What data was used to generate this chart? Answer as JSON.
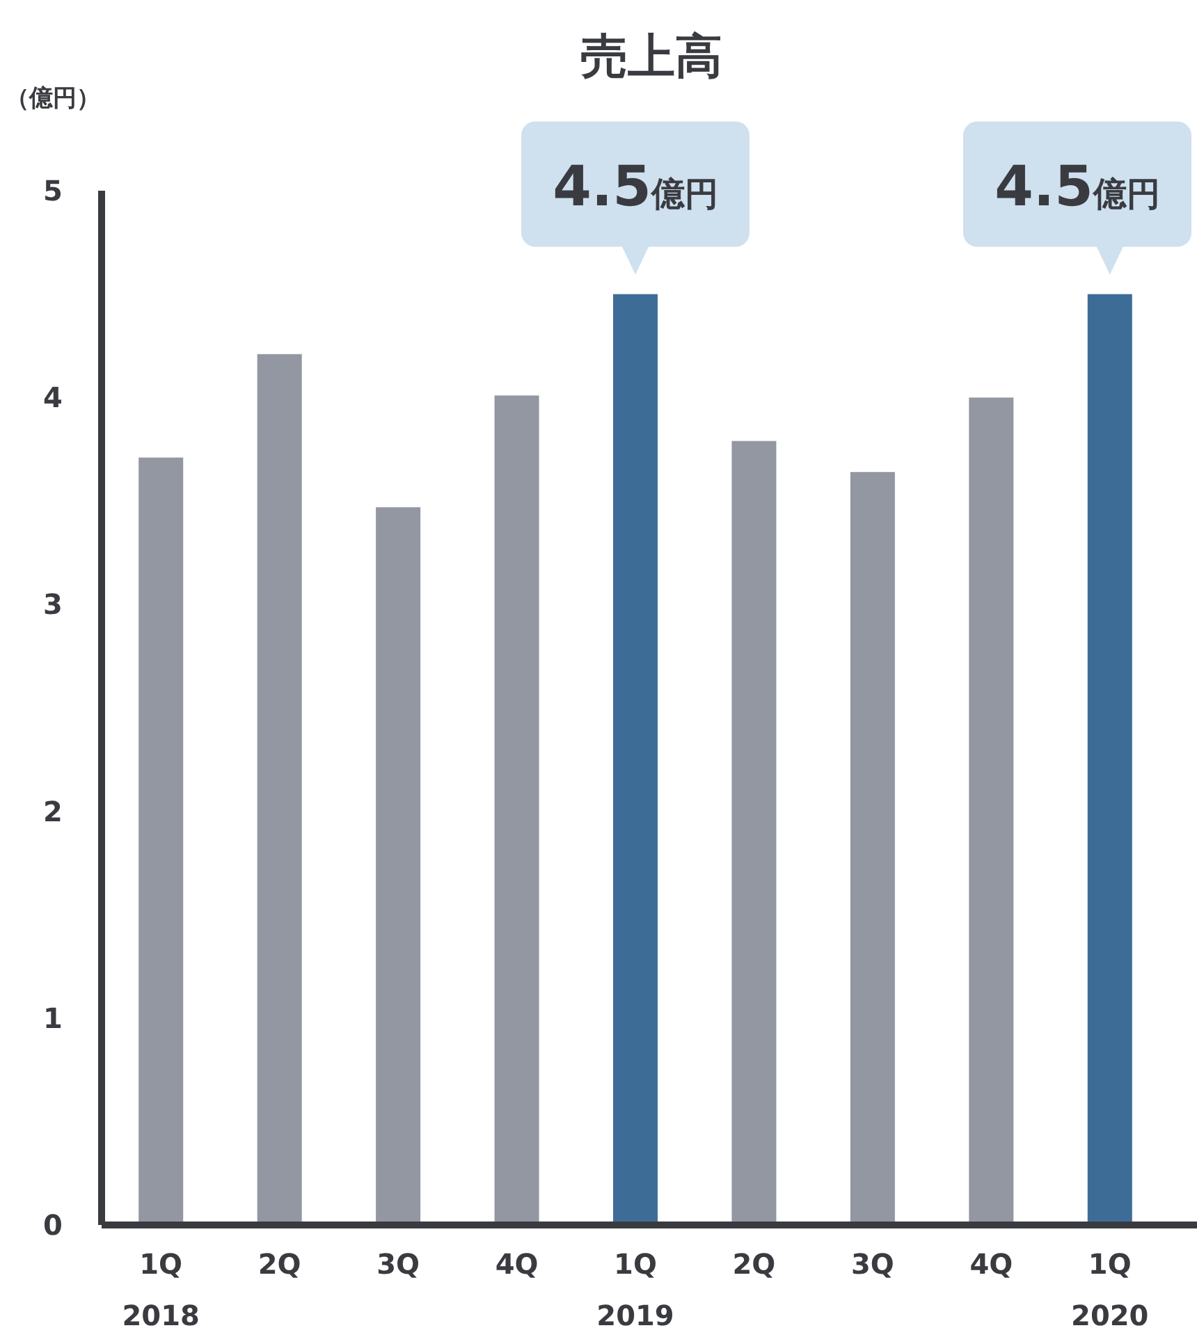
{
  "chart_data": {
    "type": "bar",
    "title": "売上高",
    "ylabel": "（億円）",
    "categories": [
      "1Q\n2018",
      "2Q",
      "3Q",
      "4Q",
      "1Q\n2019",
      "2Q",
      "3Q",
      "4Q",
      "1Q\n2020"
    ],
    "values": [
      3.71,
      4.21,
      3.47,
      4.01,
      4.5,
      3.79,
      3.64,
      4.0,
      4.5
    ],
    "colors": [
      "#9397a1",
      "#9397a1",
      "#9397a1",
      "#9397a1",
      "#3d6d97",
      "#9397a1",
      "#9397a1",
      "#9397a1",
      "#3d6d97"
    ],
    "value_labels": [
      null,
      null,
      null,
      null,
      "4.5億円",
      null,
      null,
      null,
      "4.5億円"
    ],
    "ylim": [
      0,
      5
    ],
    "yticks": [
      0,
      1,
      2,
      3,
      4,
      5
    ],
    "grid": false
  }
}
